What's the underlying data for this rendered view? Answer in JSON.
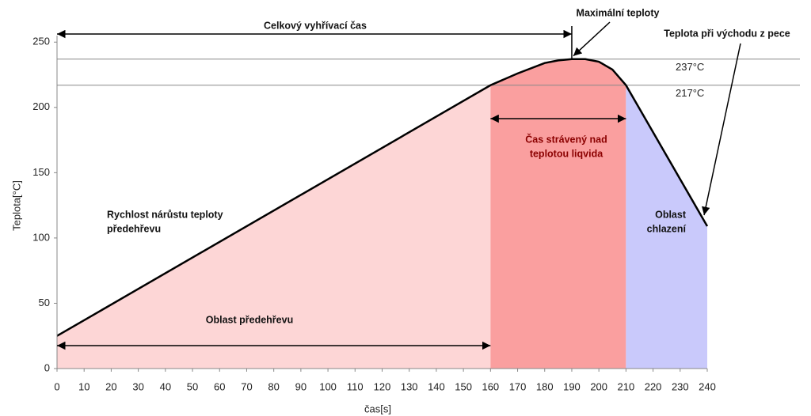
{
  "chart_data": {
    "type": "area-line",
    "x_label": "čas[s]",
    "y_label": "Teplota[°C]",
    "x": [
      0,
      160,
      170,
      180,
      185,
      190,
      195,
      200,
      205,
      210,
      240
    ],
    "values": [
      25,
      217,
      226,
      234,
      236,
      237,
      237,
      235,
      229,
      217,
      109
    ],
    "line_color": "#000000",
    "regions": [
      {
        "x": [
          0,
          160
        ],
        "color": "#fdd6d6"
      },
      {
        "x": [
          160,
          210
        ],
        "color": "#fa9f9f"
      },
      {
        "x": [
          210,
          240
        ],
        "color": "#c9c9fb"
      }
    ],
    "reference_lines": [
      {
        "value": 237,
        "label": "237°C"
      },
      {
        "value": 217,
        "label": "217°C"
      }
    ],
    "annotations": [
      {
        "text": "Celkový vyhřívací čas",
        "span": [
          0,
          190
        ]
      },
      {
        "text": "Maximální teploty",
        "point": [
          190,
          237
        ]
      },
      {
        "text": "Teplota při východu z pece",
        "point": [
          240,
          109
        ]
      },
      {
        "lines": [
          "Čas strávený nad",
          "teplotou liqvida"
        ],
        "span": [
          160,
          210
        ],
        "color": "#8b0000"
      },
      {
        "lines": [
          "Rychlost nárůstu teploty",
          "předehřevu"
        ]
      },
      {
        "lines": [
          "Oblast",
          "chlazení"
        ]
      },
      {
        "text": "Oblast předehřevu",
        "span": [
          0,
          160
        ]
      }
    ],
    "xlim": [
      0,
      240
    ],
    "xticks": [
      0,
      10,
      20,
      30,
      40,
      50,
      60,
      70,
      80,
      90,
      100,
      110,
      120,
      130,
      140,
      150,
      160,
      170,
      180,
      190,
      200,
      210,
      220,
      230,
      240
    ],
    "ylim": [
      0,
      255
    ],
    "yticks": [
      0,
      50,
      100,
      150,
      200,
      250
    ]
  }
}
